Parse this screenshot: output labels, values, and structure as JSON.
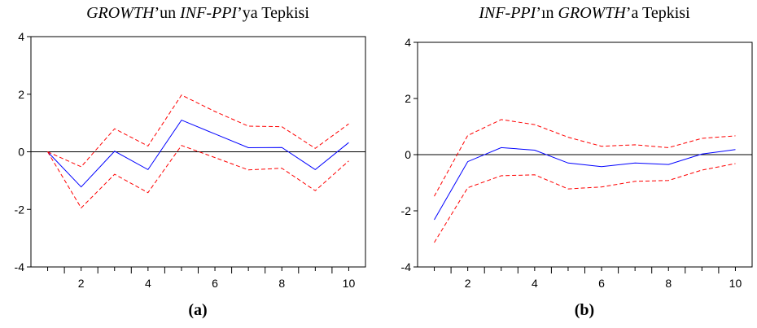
{
  "chart_data": [
    {
      "type": "line",
      "panel": "a",
      "title_parts": [
        "GROWTH",
        "’un ",
        "INF-PPI",
        "’ya Tepkisi"
      ],
      "caption": "(a)",
      "x": [
        1,
        2,
        3,
        4,
        5,
        6,
        7,
        8,
        9,
        10
      ],
      "xlim": [
        0.5,
        10.5
      ],
      "ylim": [
        -4,
        4
      ],
      "xticks": [
        2,
        4,
        6,
        8,
        10
      ],
      "yticks": [
        -4,
        -2,
        0,
        2,
        4
      ],
      "ytick_labels": [
        "-4",
        "-2",
        "0",
        "2",
        "4"
      ],
      "zero_line": true,
      "series": [
        {
          "role": "response",
          "color": "#0000ff",
          "dashed": false,
          "values": [
            0.0,
            -1.22,
            0.02,
            -0.62,
            1.1,
            0.62,
            0.14,
            0.15,
            -0.62,
            0.32
          ]
        },
        {
          "role": "upper",
          "color": "#ff0000",
          "dashed": true,
          "values": [
            0.0,
            -0.52,
            0.8,
            0.2,
            1.97,
            1.4,
            0.89,
            0.87,
            0.12,
            0.97
          ]
        },
        {
          "role": "lower",
          "color": "#ff0000",
          "dashed": true,
          "values": [
            0.0,
            -1.95,
            -0.78,
            -1.42,
            0.22,
            -0.2,
            -0.63,
            -0.57,
            -1.35,
            -0.32
          ]
        }
      ]
    },
    {
      "type": "line",
      "panel": "b",
      "title_parts": [
        "INF-PPI",
        "’ın ",
        "GROWTH",
        "’a Tepkisi"
      ],
      "caption": "(b)",
      "x": [
        1,
        2,
        3,
        4,
        5,
        6,
        7,
        8,
        9,
        10
      ],
      "xlim": [
        0.5,
        10.5
      ],
      "ylim": [
        -4,
        4
      ],
      "xticks": [
        2,
        4,
        6,
        8,
        10
      ],
      "yticks": [
        -4,
        -2,
        0,
        2,
        4
      ],
      "ytick_labels": [
        "-4",
        "-2",
        "0",
        "2",
        "4"
      ],
      "zero_line": true,
      "series": [
        {
          "role": "response",
          "color": "#0000ff",
          "dashed": false,
          "values": [
            -2.32,
            -0.25,
            0.25,
            0.16,
            -0.3,
            -0.43,
            -0.3,
            -0.35,
            0.02,
            0.18
          ]
        },
        {
          "role": "upper",
          "color": "#ff0000",
          "dashed": true,
          "values": [
            -1.48,
            0.68,
            1.25,
            1.07,
            0.62,
            0.3,
            0.35,
            0.25,
            0.58,
            0.67
          ]
        },
        {
          "role": "lower",
          "color": "#ff0000",
          "dashed": true,
          "values": [
            -3.13,
            -1.18,
            -0.75,
            -0.72,
            -1.22,
            -1.15,
            -0.95,
            -0.92,
            -0.55,
            -0.32
          ]
        }
      ]
    }
  ]
}
